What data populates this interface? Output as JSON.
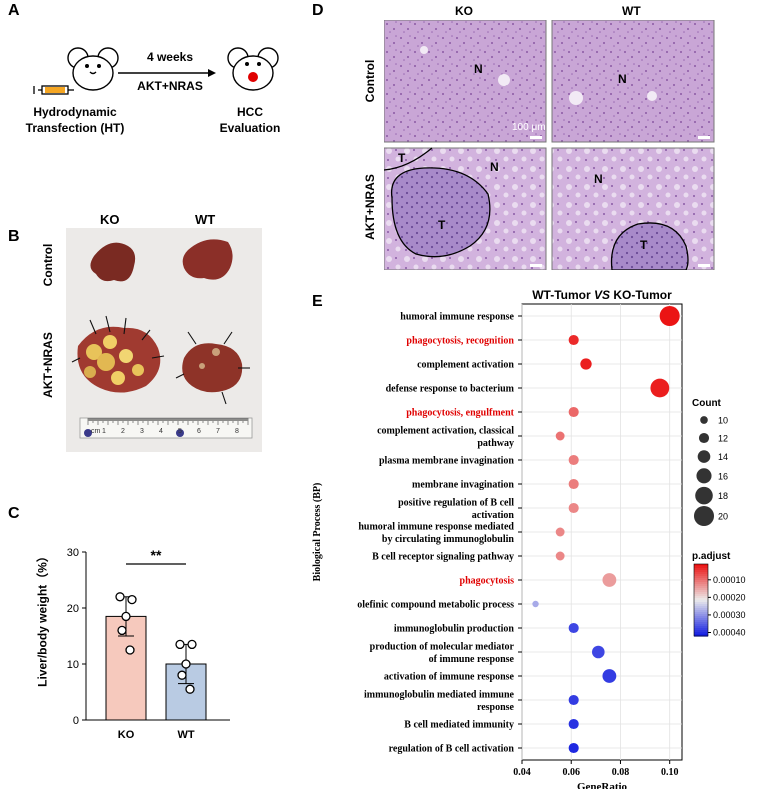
{
  "panelA": {
    "label": "A",
    "arrow_top": "4 weeks",
    "arrow_bottom": "AKT+NRAS",
    "left_line1": "Hydrodynamic",
    "left_line2": "Transfection (HT)",
    "right_line1": "HCC",
    "right_line2": "Evaluation"
  },
  "panelB": {
    "label": "B",
    "col_ko": "KO",
    "col_wt": "WT",
    "row_control": "Control",
    "row_akt": "AKT+NRAS",
    "ruler_unit": "cm",
    "ruler_numbers": [
      "1",
      "2",
      "3",
      "4",
      "5",
      "6",
      "7",
      "8"
    ]
  },
  "panelC": {
    "label": "C",
    "significance": "**",
    "chart_data": {
      "type": "bar",
      "categories": [
        "KO",
        "WT"
      ],
      "values": [
        18.5,
        10
      ],
      "errors": [
        3.5,
        3.5
      ],
      "points": [
        [
          22,
          21.5,
          18.5,
          16,
          12.5
        ],
        [
          13.5,
          13.5,
          10,
          8,
          5.5
        ]
      ],
      "ylabel": "Liver/body weight（%）",
      "ylim": [
        0,
        30
      ],
      "yticks": [
        0,
        10,
        20,
        30
      ],
      "colors": [
        "#f6c9bd",
        "#b9cbe3"
      ]
    }
  },
  "panelD": {
    "label": "D",
    "col_ko": "KO",
    "col_wt": "WT",
    "row_control": "Control",
    "row_akt": "AKT+NRAS",
    "scale_bar": "100 μm",
    "mark_N": "N",
    "mark_T": "T"
  },
  "panelE": {
    "label": "E",
    "chart_data": {
      "type": "scatter",
      "title": "WT-Tumor VS KO-Tumor",
      "title_parts": [
        "WT-Tumor ",
        "VS",
        " KO-Tumor"
      ],
      "xlabel": "GeneRatio",
      "ylabel": "Biological Process (BP)",
      "xlim": [
        0.04,
        0.105
      ],
      "xticks": [
        "0.04",
        "0.06",
        "0.08",
        "0.10"
      ],
      "terms": [
        {
          "label": [
            "humoral immune response"
          ],
          "x": 0.1,
          "count": 20,
          "padj": 1e-05,
          "highlight": false
        },
        {
          "label": [
            "phagocytosis, recognition"
          ],
          "x": 0.061,
          "count": 12,
          "padj": 3e-05,
          "highlight": true
        },
        {
          "label": [
            "complement activation"
          ],
          "x": 0.066,
          "count": 13,
          "padj": 2e-05,
          "highlight": false
        },
        {
          "label": [
            "defense response to bacterium"
          ],
          "x": 0.096,
          "count": 19,
          "padj": 2e-05,
          "highlight": false
        },
        {
          "label": [
            "phagocytosis, engulfment"
          ],
          "x": 0.061,
          "count": 12,
          "padj": 9e-05,
          "highlight": true
        },
        {
          "label": [
            "complement activation, classical",
            "pathway"
          ],
          "x": 0.0555,
          "count": 11,
          "padj": 0.0001,
          "highlight": false
        },
        {
          "label": [
            "plasma membrane invagination"
          ],
          "x": 0.061,
          "count": 12,
          "padj": 0.00011,
          "highlight": false
        },
        {
          "label": [
            "membrane invagination"
          ],
          "x": 0.061,
          "count": 12,
          "padj": 0.00011,
          "highlight": false
        },
        {
          "label": [
            "positive regulation of B cell",
            "activation"
          ],
          "x": 0.061,
          "count": 12,
          "padj": 0.00012,
          "highlight": false
        },
        {
          "label": [
            "humoral immune response mediated",
            "by circulating immunoglobulin"
          ],
          "x": 0.0555,
          "count": 11,
          "padj": 0.00012,
          "highlight": false
        },
        {
          "label": [
            "B cell receptor signaling pathway"
          ],
          "x": 0.0555,
          "count": 11,
          "padj": 0.00012,
          "highlight": false
        },
        {
          "label": [
            "phagocytosis"
          ],
          "x": 0.0755,
          "count": 15,
          "padj": 0.00014,
          "highlight": true
        },
        {
          "label": [
            "olefinic compound metabolic process"
          ],
          "x": 0.0455,
          "count": 9,
          "padj": 0.00028,
          "highlight": false
        },
        {
          "label": [
            "immunoglobulin production"
          ],
          "x": 0.061,
          "count": 12,
          "padj": 0.00038,
          "highlight": false
        },
        {
          "label": [
            "production of molecular mediator",
            "of immune response"
          ],
          "x": 0.071,
          "count": 14,
          "padj": 0.00038,
          "highlight": false
        },
        {
          "label": [
            "activation of immune response"
          ],
          "x": 0.0755,
          "count": 15,
          "padj": 0.00039,
          "highlight": false
        },
        {
          "label": [
            "immunoglobulin mediated immune",
            "response"
          ],
          "x": 0.061,
          "count": 12,
          "padj": 0.00039,
          "highlight": false
        },
        {
          "label": [
            "B cell mediated immunity"
          ],
          "x": 0.061,
          "count": 12,
          "padj": 0.0004,
          "highlight": false
        },
        {
          "label": [
            "regulation of B cell activation"
          ],
          "x": 0.061,
          "count": 12,
          "padj": 0.00041,
          "highlight": false
        }
      ],
      "legend_count_title": "Count",
      "legend_counts": [
        10,
        12,
        14,
        16,
        18,
        20
      ],
      "legend_padj_title": "p.adjust",
      "legend_padj_labels": [
        "0.00010",
        "0.00020",
        "0.00030",
        "0.00040"
      ],
      "legend_padj_values": [
        0.0001,
        0.0002,
        0.0003,
        0.0004
      ],
      "padj_range": [
        1e-05,
        0.00042
      ],
      "highlight_color": "#e00000"
    }
  }
}
